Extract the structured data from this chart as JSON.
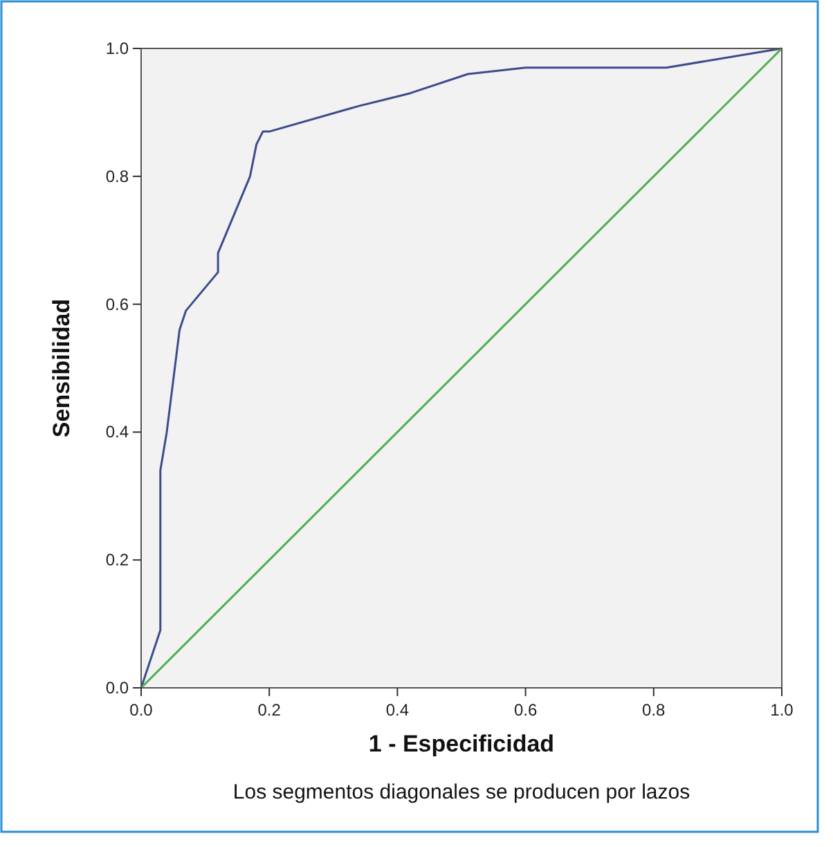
{
  "chart_data": {
    "type": "line",
    "xlabel": "1 - Especificidad",
    "ylabel": "Sensibilidad",
    "annotations": [
      "Los segmentos diagonales se producen por lazos"
    ],
    "xlim": [
      0,
      1
    ],
    "ylim": [
      0,
      1
    ],
    "xticks": [
      {
        "value": 0,
        "label": "0.0"
      },
      {
        "value": 0.2,
        "label": "0.2"
      },
      {
        "value": 0.4,
        "label": "0.4"
      },
      {
        "value": 0.6,
        "label": "0.6"
      },
      {
        "value": 0.8,
        "label": "0.8"
      },
      {
        "value": 1,
        "label": "1.0"
      }
    ],
    "yticks": [
      {
        "value": 0,
        "label": "0.0"
      },
      {
        "value": 0.2,
        "label": "0.2"
      },
      {
        "value": 0.4,
        "label": "0.4"
      },
      {
        "value": 0.6,
        "label": "0.6"
      },
      {
        "value": 0.8,
        "label": "0.8"
      },
      {
        "value": 1,
        "label": "1.0"
      }
    ],
    "grid": false,
    "series": [
      {
        "color": "#3d4c8c",
        "x": [
          0,
          0.03,
          0.03,
          0.04,
          0.06,
          0.07,
          0.12,
          0.12,
          0.17,
          0.18,
          0.19,
          0.2,
          0.34,
          0.38,
          0.42,
          0.51,
          0.6,
          0.82,
          1
        ],
        "values": [
          0,
          0.09,
          0.34,
          0.4,
          0.56,
          0.59,
          0.65,
          0.68,
          0.8,
          0.85,
          0.87,
          0.87,
          0.91,
          0.92,
          0.93,
          0.96,
          0.97,
          0.97,
          1
        ]
      },
      {
        "color": "#4caf50",
        "x": [
          0,
          1
        ],
        "values": [
          0,
          1
        ]
      }
    ]
  }
}
